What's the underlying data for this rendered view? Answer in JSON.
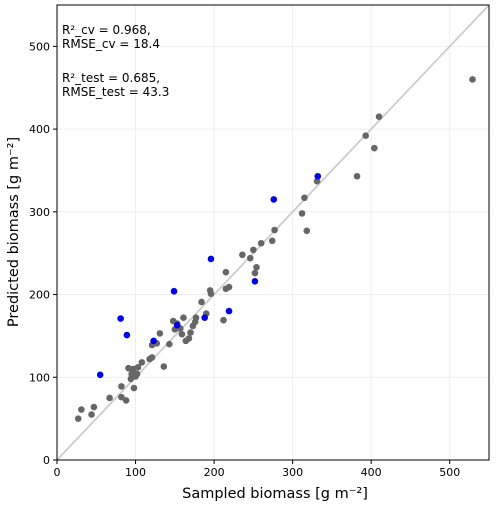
{
  "chart_data": {
    "type": "scatter",
    "xlabel": "Sampled biomass [g m⁻²]",
    "ylabel": "Predicted biomass [g m⁻²]",
    "xlim": [
      0,
      550
    ],
    "ylim": [
      0,
      550
    ],
    "xticks": [
      0,
      100,
      200,
      300,
      400,
      500
    ],
    "yticks": [
      0,
      100,
      200,
      300,
      400,
      500
    ],
    "grid": true,
    "reference_line": "1:1",
    "annotations": {
      "cv_line1": "R²_cv = 0.968,",
      "cv_line2": "RMSE_cv = 18.4",
      "test_line1": "R²_test = 0.685,",
      "test_line2": "RMSE_test = 43.3"
    },
    "series": [
      {
        "color": "#666666",
        "points": [
          [
            27,
            50
          ],
          [
            31,
            61
          ],
          [
            44,
            55
          ],
          [
            47,
            64
          ],
          [
            67,
            75
          ],
          [
            82,
            76
          ],
          [
            82,
            89
          ],
          [
            88,
            72
          ],
          [
            91,
            111
          ],
          [
            94,
            98
          ],
          [
            95,
            104
          ],
          [
            97,
            110
          ],
          [
            98,
            87
          ],
          [
            100,
            101
          ],
          [
            102,
            104
          ],
          [
            103,
            112
          ],
          [
            108,
            118
          ],
          [
            118,
            122
          ],
          [
            121,
            124
          ],
          [
            121,
            139
          ],
          [
            127,
            141
          ],
          [
            131,
            153
          ],
          [
            136,
            113
          ],
          [
            143,
            140
          ],
          [
            148,
            168
          ],
          [
            150,
            158
          ],
          [
            153,
            165
          ],
          [
            157,
            159
          ],
          [
            159,
            152
          ],
          [
            161,
            172
          ],
          [
            164,
            144
          ],
          [
            168,
            147
          ],
          [
            170,
            154
          ],
          [
            173,
            162
          ],
          [
            176,
            167
          ],
          [
            177,
            172
          ],
          [
            184,
            191
          ],
          [
            190,
            177
          ],
          [
            195,
            205
          ],
          [
            196,
            201
          ],
          [
            212,
            169
          ],
          [
            215,
            207
          ],
          [
            215,
            227
          ],
          [
            219,
            209
          ],
          [
            236,
            248
          ],
          [
            246,
            244
          ],
          [
            250,
            254
          ],
          [
            252,
            226
          ],
          [
            254,
            233
          ],
          [
            260,
            262
          ],
          [
            274,
            265
          ],
          [
            277,
            278
          ],
          [
            312,
            298
          ],
          [
            315,
            317
          ],
          [
            318,
            277
          ],
          [
            331,
            337
          ],
          [
            382,
            343
          ],
          [
            393,
            392
          ],
          [
            404,
            377
          ],
          [
            410,
            415
          ],
          [
            529,
            460
          ]
        ]
      },
      {
        "color": "#0000e6",
        "points": [
          [
            55,
            103
          ],
          [
            81,
            171
          ],
          [
            89,
            151
          ],
          [
            123,
            144
          ],
          [
            149,
            204
          ],
          [
            153,
            163
          ],
          [
            188,
            172
          ],
          [
            196,
            243
          ],
          [
            219,
            180
          ],
          [
            252,
            216
          ],
          [
            276,
            315
          ],
          [
            332,
            343
          ]
        ]
      }
    ]
  }
}
